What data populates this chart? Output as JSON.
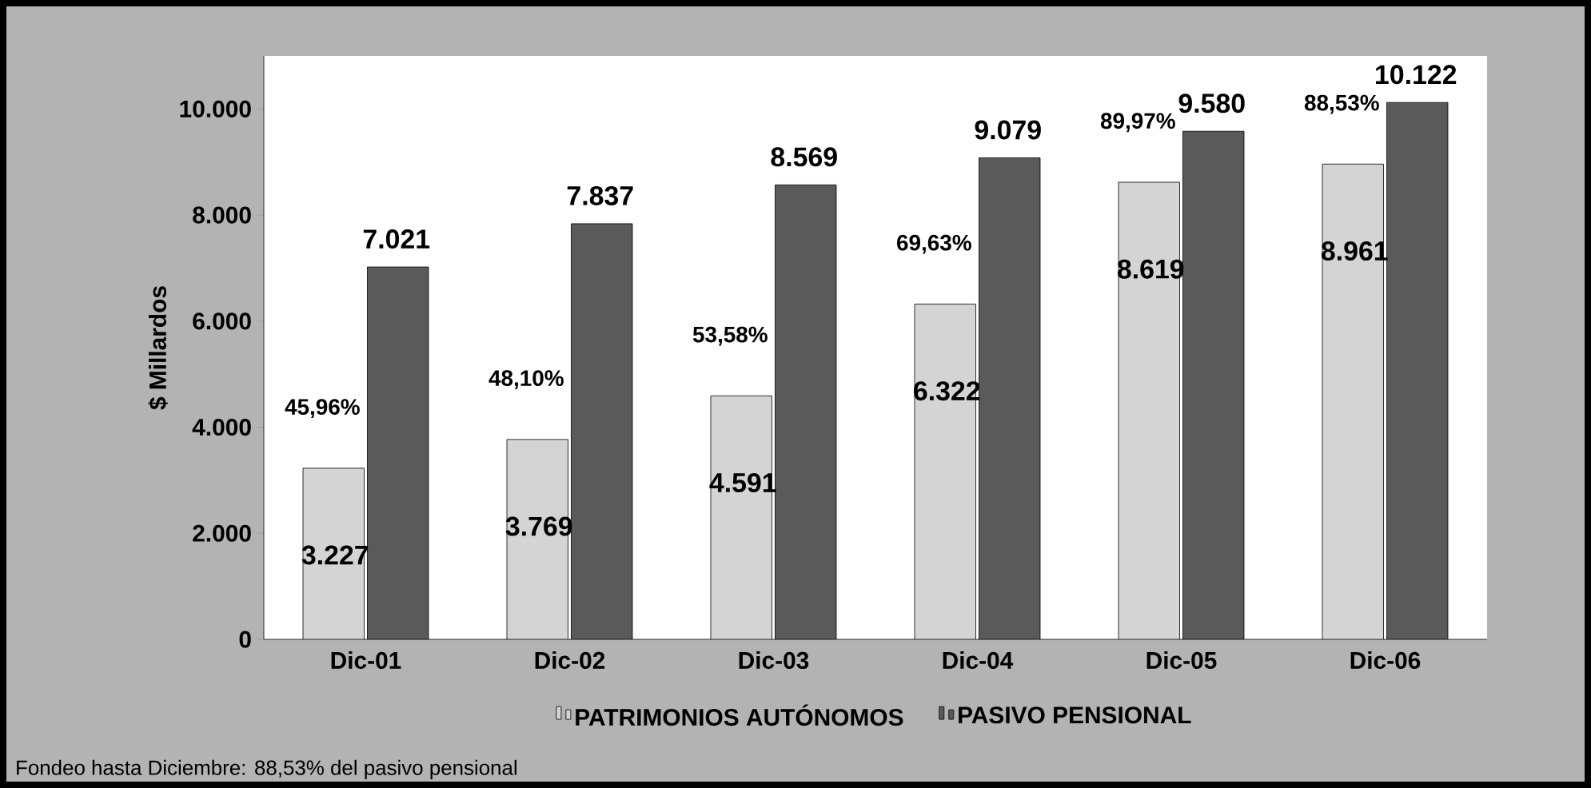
{
  "chart_data": {
    "type": "bar",
    "ylabel": "$ Millardos",
    "categories": [
      "Dic-01",
      "Dic-02",
      "Dic-03",
      "Dic-04",
      "Dic-05",
      "Dic-06"
    ],
    "series": [
      {
        "name": "PATRIMONIOS AUTÓNOMOS",
        "color": "#d4d4d4",
        "values": [
          3227,
          3769,
          4591,
          6322,
          8619,
          8961
        ],
        "value_labels": [
          "3.227",
          "3.769",
          "4.591",
          "6.322",
          "8.619",
          "8.961"
        ]
      },
      {
        "name": "PASIVO PENSIONAL",
        "color": "#5a5a5a",
        "values": [
          7021,
          7837,
          8569,
          9079,
          9580,
          10122
        ],
        "value_labels": [
          "7.021",
          "7.837",
          "8.569",
          "9.079",
          "9.580",
          "10.122"
        ]
      }
    ],
    "ylim": [
      0,
      11000
    ],
    "yticks": [
      0,
      {
        "value": 2000,
        "label": "2.000"
      },
      {
        "value": 4000,
        "label": "4.000"
      },
      {
        "value": 6000,
        "label": "6.000"
      },
      {
        "value": 8000,
        "label": "8.000"
      },
      {
        "value": 10000,
        "label": "10.000"
      }
    ],
    "legend": "bottom",
    "annotations": [
      {
        "text": "45,96%",
        "x": "Dic-01",
        "y": 3227
      },
      {
        "text": "48,10%",
        "x": "Dic-02",
        "y": 3769
      },
      {
        "text": "53,58%",
        "x": "Dic-03",
        "y": 4591
      },
      {
        "text": "69,63%",
        "x": "Dic-04",
        "y": 6322
      },
      {
        "text": "89,97%",
        "x": "Dic-05",
        "y": 8619
      },
      {
        "text": "88,53%",
        "x": "Dic-06",
        "y": 8961
      },
      "Fondeo hasta Diciembre: 88,53% del pasivo pensional"
    ]
  }
}
